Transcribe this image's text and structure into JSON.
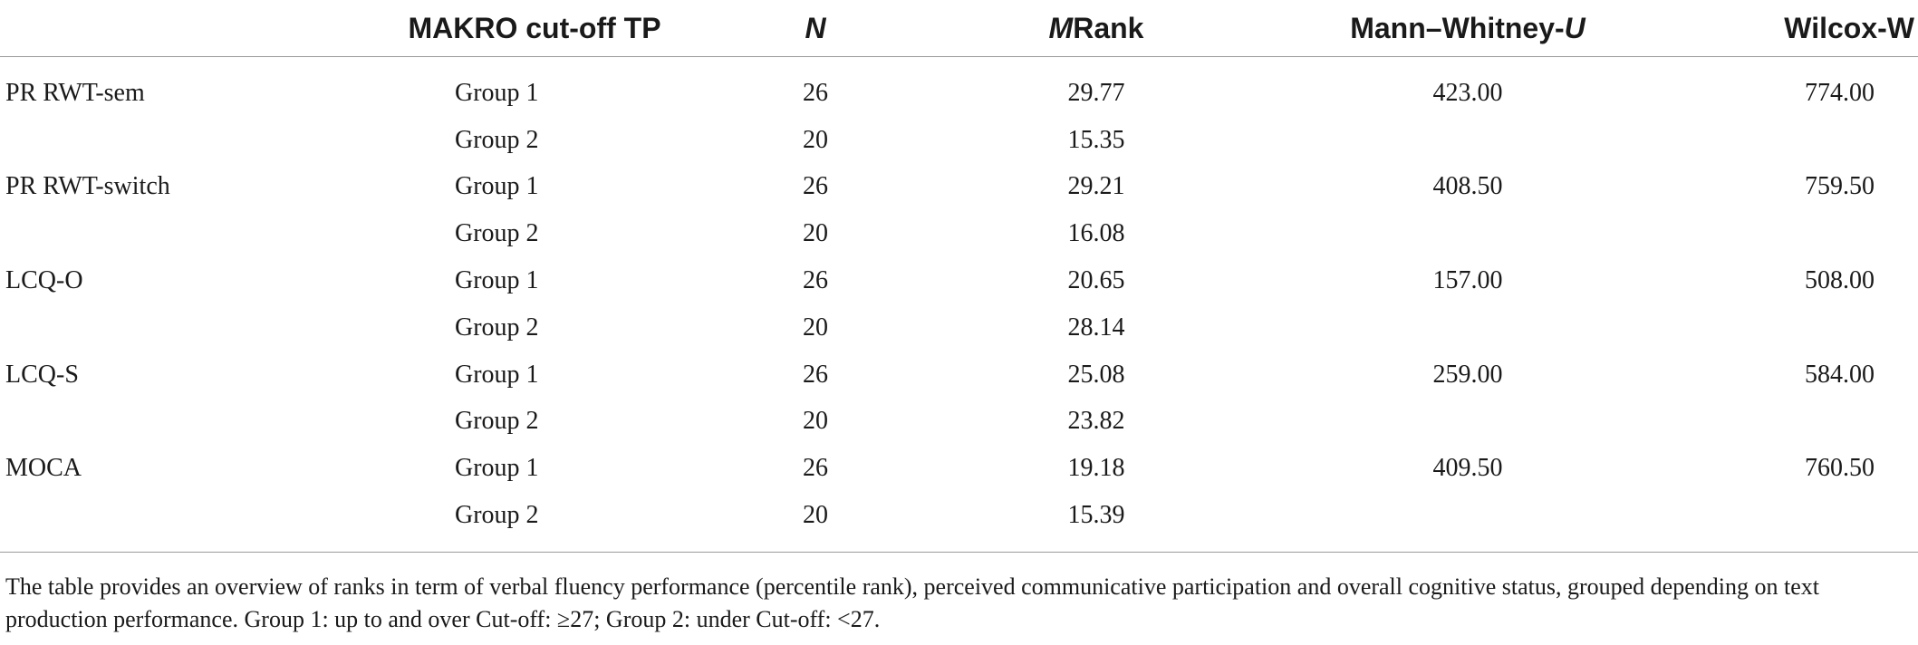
{
  "table": {
    "headers": {
      "col0": "",
      "col1": "MAKRO cut-off TP",
      "col2_italic": "N",
      "col3_italic": "M",
      "col3_rest": "Rank",
      "col4_prefix": "Mann–Whitney-",
      "col4_italic": "U",
      "col5": "Wilcox-W"
    },
    "rows": [
      {
        "measure": "PR RWT-sem",
        "group": "Group 1",
        "n": "26",
        "mrank": "29.77",
        "u": "423.00",
        "w": "774.00"
      },
      {
        "measure": "",
        "group": "Group 2",
        "n": "20",
        "mrank": "15.35",
        "u": "",
        "w": ""
      },
      {
        "measure": "PR RWT-switch",
        "group": "Group 1",
        "n": "26",
        "mrank": "29.21",
        "u": "408.50",
        "w": "759.50"
      },
      {
        "measure": "",
        "group": "Group 2",
        "n": "20",
        "mrank": "16.08",
        "u": "",
        "w": ""
      },
      {
        "measure": "LCQ-O",
        "group": "Group 1",
        "n": "26",
        "mrank": "20.65",
        "u": "157.00",
        "w": "508.00"
      },
      {
        "measure": "",
        "group": "Group 2",
        "n": "20",
        "mrank": "28.14",
        "u": "",
        "w": ""
      },
      {
        "measure": "LCQ-S",
        "group": "Group 1",
        "n": "26",
        "mrank": "25.08",
        "u": "259.00",
        "w": "584.00"
      },
      {
        "measure": "",
        "group": "Group 2",
        "n": "20",
        "mrank": "23.82",
        "u": "",
        "w": ""
      },
      {
        "measure": "MOCA",
        "group": "Group 1",
        "n": "26",
        "mrank": "19.18",
        "u": "409.50",
        "w": "760.50"
      },
      {
        "measure": "",
        "group": "Group 2",
        "n": "20",
        "mrank": "15.39",
        "u": "",
        "w": ""
      }
    ]
  },
  "footnote": "The table provides an overview of ranks in term of verbal fluency performance (percentile rank), perceived communicative participation and overall cognitive status, grouped depending on text production performance. Group 1: up to and over Cut-off: ≥27; Group 2: under Cut-off: <27."
}
